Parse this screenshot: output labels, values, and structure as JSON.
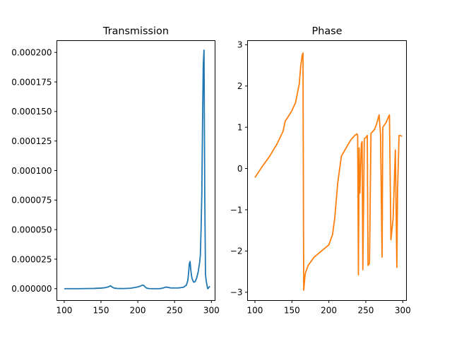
{
  "chart_data": [
    {
      "type": "line",
      "title": "Transmission",
      "xlabel": "",
      "ylabel": "",
      "xlim": [
        90,
        305
      ],
      "ylim": [
        -1e-05,
        0.00021
      ],
      "x_ticks": [
        100,
        150,
        200,
        250,
        300
      ],
      "x_tick_labels": [
        "100",
        "150",
        "200",
        "250",
        "300"
      ],
      "y_ticks": [
        0,
        2.5e-05,
        5e-05,
        7.5e-05,
        0.0001,
        0.000125,
        0.00015,
        0.000175,
        0.0002
      ],
      "y_tick_labels": [
        "0.000000",
        "0.000025",
        "0.000050",
        "0.000075",
        "0.000100",
        "0.000125",
        "0.000150",
        "0.000175",
        "0.000200"
      ],
      "grid": false,
      "color": "#1f77b4",
      "series": [
        {
          "x": [
            100,
            120,
            140,
            150,
            155,
            158,
            161,
            163,
            165,
            168,
            172,
            180,
            190,
            198,
            203,
            206,
            208,
            210,
            212,
            215,
            220,
            230,
            235,
            238,
            241,
            245,
            255,
            262,
            266,
            268,
            269,
            270,
            271,
            272,
            273,
            274,
            276,
            278,
            280,
            282,
            284,
            285,
            286,
            287,
            288,
            289,
            290,
            291,
            292,
            293,
            294,
            295,
            296,
            297,
            298
          ],
          "y": [
            0,
            0,
            2e-07,
            5e-07,
            8e-07,
            1.2e-06,
            1.8e-06,
            2.5e-06,
            1.4e-06,
            5e-07,
            2e-07,
            1e-07,
            4e-07,
            1.2e-06,
            2e-06,
            3e-06,
            2.8e-06,
            1.5e-06,
            5e-07,
            1e-07,
            0,
            0,
            7e-07,
            1.4e-06,
            1.1e-06,
            6e-07,
            6e-07,
            1.2e-06,
            3e-06,
            7e-06,
            1.3e-05,
            2.1e-05,
            2.3e-05,
            1.6e-05,
            1.1e-05,
            8e-06,
            5.5e-06,
            6e-06,
            9e-06,
            1.4e-05,
            2.2e-05,
            2.8e-05,
            5e-05,
            8e-05,
            0.00014,
            0.00019,
            0.000202,
            8e-05,
            1.2e-05,
            6.5e-06,
            3e-06,
            0,
            5e-07,
            1.5e-06,
            2e-06
          ]
        }
      ]
    },
    {
      "type": "line",
      "title": "Phase",
      "xlabel": "",
      "ylabel": "",
      "xlim": [
        90,
        305
      ],
      "ylim": [
        -3.2,
        3.1
      ],
      "x_ticks": [
        100,
        150,
        200,
        250,
        300
      ],
      "x_tick_labels": [
        "100",
        "150",
        "200",
        "250",
        "300"
      ],
      "y_ticks": [
        -3,
        -2,
        -1,
        0,
        1,
        2,
        3
      ],
      "y_tick_labels": [
        "−3",
        "−2",
        "−1",
        "0",
        "1",
        "2",
        "3"
      ],
      "grid": false,
      "color": "#ff7f0e",
      "series": [
        {
          "x": [
            100,
            110,
            120,
            130,
            138,
            141,
            143,
            150,
            155,
            160,
            162,
            164,
            165,
            166,
            168,
            172,
            180,
            190,
            200,
            205,
            208,
            212,
            217,
            225,
            230,
            235,
            238,
            239,
            240,
            241,
            242,
            244,
            245,
            246,
            248,
            250,
            252,
            253,
            255,
            257,
            262,
            265,
            268,
            270,
            272,
            273,
            275,
            277,
            282,
            284,
            285,
            287,
            290,
            292,
            293,
            295,
            297,
            299
          ],
          "y": [
            -0.22,
            0.05,
            0.3,
            0.6,
            0.9,
            1.15,
            1.2,
            1.4,
            1.6,
            2.05,
            2.5,
            2.75,
            2.8,
            -2.95,
            -2.55,
            -2.35,
            -2.15,
            -2.0,
            -1.85,
            -1.6,
            -1.2,
            -0.35,
            0.3,
            0.55,
            0.7,
            0.8,
            0.84,
            0.8,
            -2.58,
            0.5,
            -0.6,
            0.6,
            0.65,
            -2.45,
            0.72,
            0.75,
            0.8,
            -2.35,
            -2.3,
            0.85,
            0.95,
            1.1,
            1.3,
            0.8,
            -2.15,
            1.0,
            1.05,
            1.1,
            1.3,
            -1.73,
            -1.55,
            -1.2,
            0.45,
            -2.4,
            -0.5,
            0.8,
            0.8,
            0.78
          ]
        }
      ]
    }
  ]
}
